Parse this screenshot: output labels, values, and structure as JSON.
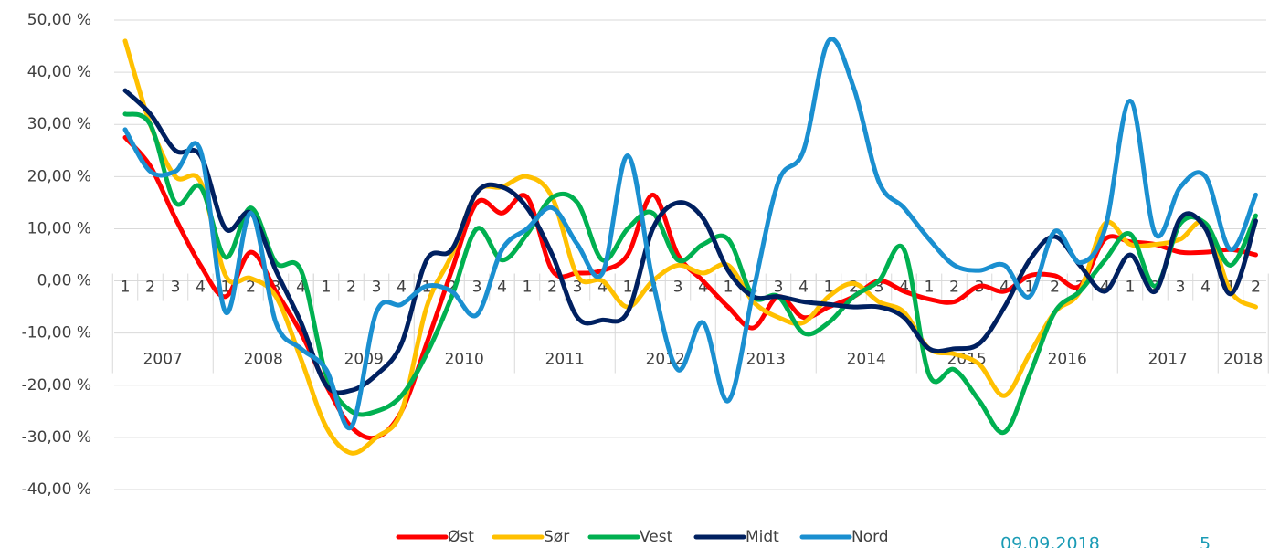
{
  "chart_data": {
    "type": "line",
    "categories": [
      "1",
      "2",
      "3",
      "4",
      "1",
      "2",
      "3",
      "4",
      "1",
      "2",
      "3",
      "4",
      "1",
      "2",
      "3",
      "4",
      "1",
      "2",
      "3",
      "4",
      "1",
      "2",
      "3",
      "4",
      "1",
      "2",
      "3",
      "4",
      "1",
      "2",
      "3",
      "4",
      "1",
      "2",
      "3",
      "4",
      "1",
      "2",
      "3",
      "4",
      "1",
      "2",
      "3",
      "4",
      "1",
      "2"
    ],
    "category_groups": [
      "2007",
      "2008",
      "2009",
      "2010",
      "2011",
      "2012",
      "2013",
      "2014",
      "2015",
      "2016",
      "2017",
      "2018"
    ],
    "series": [
      {
        "name": "Øst",
        "color": "#ff0000",
        "values": [
          27.5,
          22,
          12,
          3,
          -3,
          5.5,
          -2,
          -10,
          -20,
          -28,
          -30,
          -25,
          -12,
          2,
          15,
          13,
          16,
          2,
          1.5,
          2,
          5,
          16.5,
          5,
          0,
          -5,
          -9,
          -3,
          -7,
          -5,
          -3,
          0,
          -2,
          -3.5,
          -4,
          -1,
          -2,
          1,
          1,
          -1,
          8,
          7.5,
          7,
          5.5,
          5.5,
          6,
          5
        ]
      },
      {
        "name": "Sør",
        "color": "#ffc000",
        "values": [
          46,
          30,
          20,
          19,
          1,
          0.5,
          -3,
          -15,
          -28,
          -33,
          -30,
          -25,
          -5,
          5,
          17,
          18,
          20,
          16,
          1,
          0,
          -5,
          0,
          3,
          1.5,
          3,
          -4,
          -7,
          -8,
          -3,
          -0.5,
          -4,
          -6,
          -13,
          -14,
          -16,
          -22,
          -14,
          -6,
          -2,
          11,
          7,
          7,
          8,
          11,
          -2,
          -5
        ]
      },
      {
        "name": "Vest",
        "color": "#00b050",
        "values": [
          32,
          30,
          15,
          18,
          4.5,
          14,
          3.5,
          2,
          -18,
          -25,
          -25,
          -22,
          -14,
          -3,
          10,
          4,
          9,
          16,
          15,
          4,
          10,
          13,
          4,
          7,
          8,
          -3,
          -3,
          -10,
          -8,
          -3,
          0,
          6,
          -18,
          -17,
          -23,
          -29,
          -18,
          -6,
          -2,
          4,
          9,
          -1,
          11,
          11,
          3,
          12.5
        ]
      },
      {
        "name": "Midt",
        "color": "#002060",
        "values": [
          36.5,
          32,
          25,
          24,
          10,
          13,
          2,
          -8,
          -20,
          -21,
          -18,
          -12,
          4,
          6,
          17,
          18,
          14,
          5,
          -7,
          -7.5,
          -6,
          10,
          15,
          12,
          2,
          -3,
          -3,
          -4,
          -4.5,
          -5,
          -5,
          -7,
          -13,
          -13,
          -12,
          -5,
          4,
          8.5,
          3,
          -2,
          5,
          -2,
          12,
          10,
          -2.5,
          11.5
        ]
      },
      {
        "name": "Nord",
        "color": "#1a8fd0",
        "values": [
          29,
          21,
          21,
          25,
          -6,
          13,
          -8,
          -13,
          -17,
          -28,
          -6,
          -4.5,
          -1,
          -2,
          -6.5,
          6,
          10,
          14,
          7,
          1.5,
          24,
          0,
          -17,
          -8,
          -23,
          -2,
          19,
          25,
          46,
          37,
          19,
          14,
          8,
          3,
          2,
          3,
          -3,
          9.5,
          3.5,
          10,
          34.5,
          9,
          18,
          20,
          6,
          16.5
        ]
      }
    ],
    "ylim": [
      -40,
      50
    ],
    "yticks": [
      {
        "value": 50,
        "label": "50,00 %"
      },
      {
        "value": 40,
        "label": "40,00 %"
      },
      {
        "value": 30,
        "label": "30,00 %"
      },
      {
        "value": 20,
        "label": "20,00 %"
      },
      {
        "value": 10,
        "label": "10,00 %"
      },
      {
        "value": 0,
        "label": "0,00 %"
      },
      {
        "value": -10,
        "label": "-10,00 %"
      },
      {
        "value": -20,
        "label": "-20,00 %"
      },
      {
        "value": -30,
        "label": "-30,00 %"
      },
      {
        "value": -40,
        "label": "-40,00 %"
      }
    ],
    "grid": true,
    "legend": "bottom",
    "annotations": [
      "09.09.2018",
      "5"
    ]
  }
}
